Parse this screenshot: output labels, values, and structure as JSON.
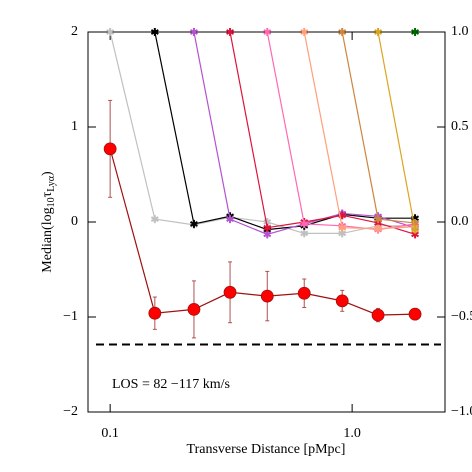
{
  "chart_data": {
    "type": "line",
    "xlabel": "Transverse Distance [pMpc]",
    "ylabel_parts": [
      "Median(log",
      "10",
      "τ",
      "Lyα",
      ")"
    ],
    "annotation": "LOS = 82 −117 km/s",
    "xscale": "log",
    "x": [
      0.1,
      0.153,
      0.222,
      0.313,
      0.446,
      0.634,
      0.91,
      1.28,
      1.82
    ],
    "xlim": [
      0.081,
      2.42
    ],
    "xticks": [
      0.1,
      {
        "value": 1,
        "label": "1.0"
      }
    ],
    "ylim": [
      -2,
      2
    ],
    "yticks": [
      2,
      1,
      0,
      {
        "value": -1,
        "label": "−1"
      },
      {
        "value": -2,
        "label": "−2"
      }
    ],
    "y2lim": [
      -1,
      1
    ],
    "y2ticks": [
      {
        "value": 1,
        "label": "1.0"
      },
      {
        "value": 0.5,
        "label": "0.5"
      },
      {
        "value": 0,
        "label": "0.0"
      },
      {
        "value": -0.5,
        "label": "−0.5"
      },
      {
        "value": -1,
        "label": "−1.0"
      }
    ],
    "hline": {
      "value": -1.29,
      "color": "#000000",
      "style": "dashed"
    },
    "series": [
      {
        "color": "#c0c0c0",
        "marker": "star",
        "values": [
          2,
          0.03,
          -0.03,
          0.05,
          0,
          -0.12,
          -0.12,
          -0.04,
          -0.04
        ]
      },
      {
        "color": "#000000",
        "marker": "star",
        "values": [
          null,
          2,
          -0.02,
          0.06,
          -0.08,
          -0.04,
          0.08,
          0.04,
          0.04
        ]
      },
      {
        "color": "#b452d2",
        "marker": "star",
        "values": [
          null,
          null,
          2,
          0.03,
          -0.13,
          -0.02,
          0.09,
          0.06,
          -0.06
        ]
      },
      {
        "color": "#dc143c",
        "marker": "star",
        "values": [
          null,
          null,
          null,
          2,
          -0.06,
          0,
          0.07,
          -0.01,
          -0.13
        ]
      },
      {
        "color": "#ff69b4",
        "marker": "star",
        "values": [
          null,
          null,
          null,
          null,
          2,
          -0.02,
          -0.04,
          -0.08,
          -0.02
        ]
      },
      {
        "color": "#ffa07a",
        "marker": "star",
        "values": [
          null,
          null,
          null,
          null,
          null,
          2,
          -0.06,
          -0.07,
          -0.05
        ]
      },
      {
        "color": "#cd853f",
        "marker": "star",
        "values": [
          null,
          null,
          null,
          null,
          null,
          null,
          2,
          0.03,
          -0.01
        ]
      },
      {
        "color": "#daa520",
        "marker": "star",
        "values": [
          null,
          null,
          null,
          null,
          null,
          null,
          null,
          2,
          -0.08
        ]
      },
      {
        "color": "#006400",
        "marker": "star",
        "values": [
          null,
          null,
          null,
          null,
          null,
          null,
          null,
          null,
          2
        ]
      },
      {
        "color": "#a01010",
        "marker": "circle",
        "marker_color": "#ff0000",
        "error_color": "#b05050",
        "values": [
          0.77,
          -0.96,
          -0.92,
          -0.74,
          -0.78,
          -0.75,
          -0.83,
          -0.98,
          -0.97
        ],
        "errors": [
          0.51,
          0.17,
          0.3,
          0.32,
          0.26,
          0.15,
          0.11,
          0.07,
          0.06
        ]
      }
    ]
  }
}
